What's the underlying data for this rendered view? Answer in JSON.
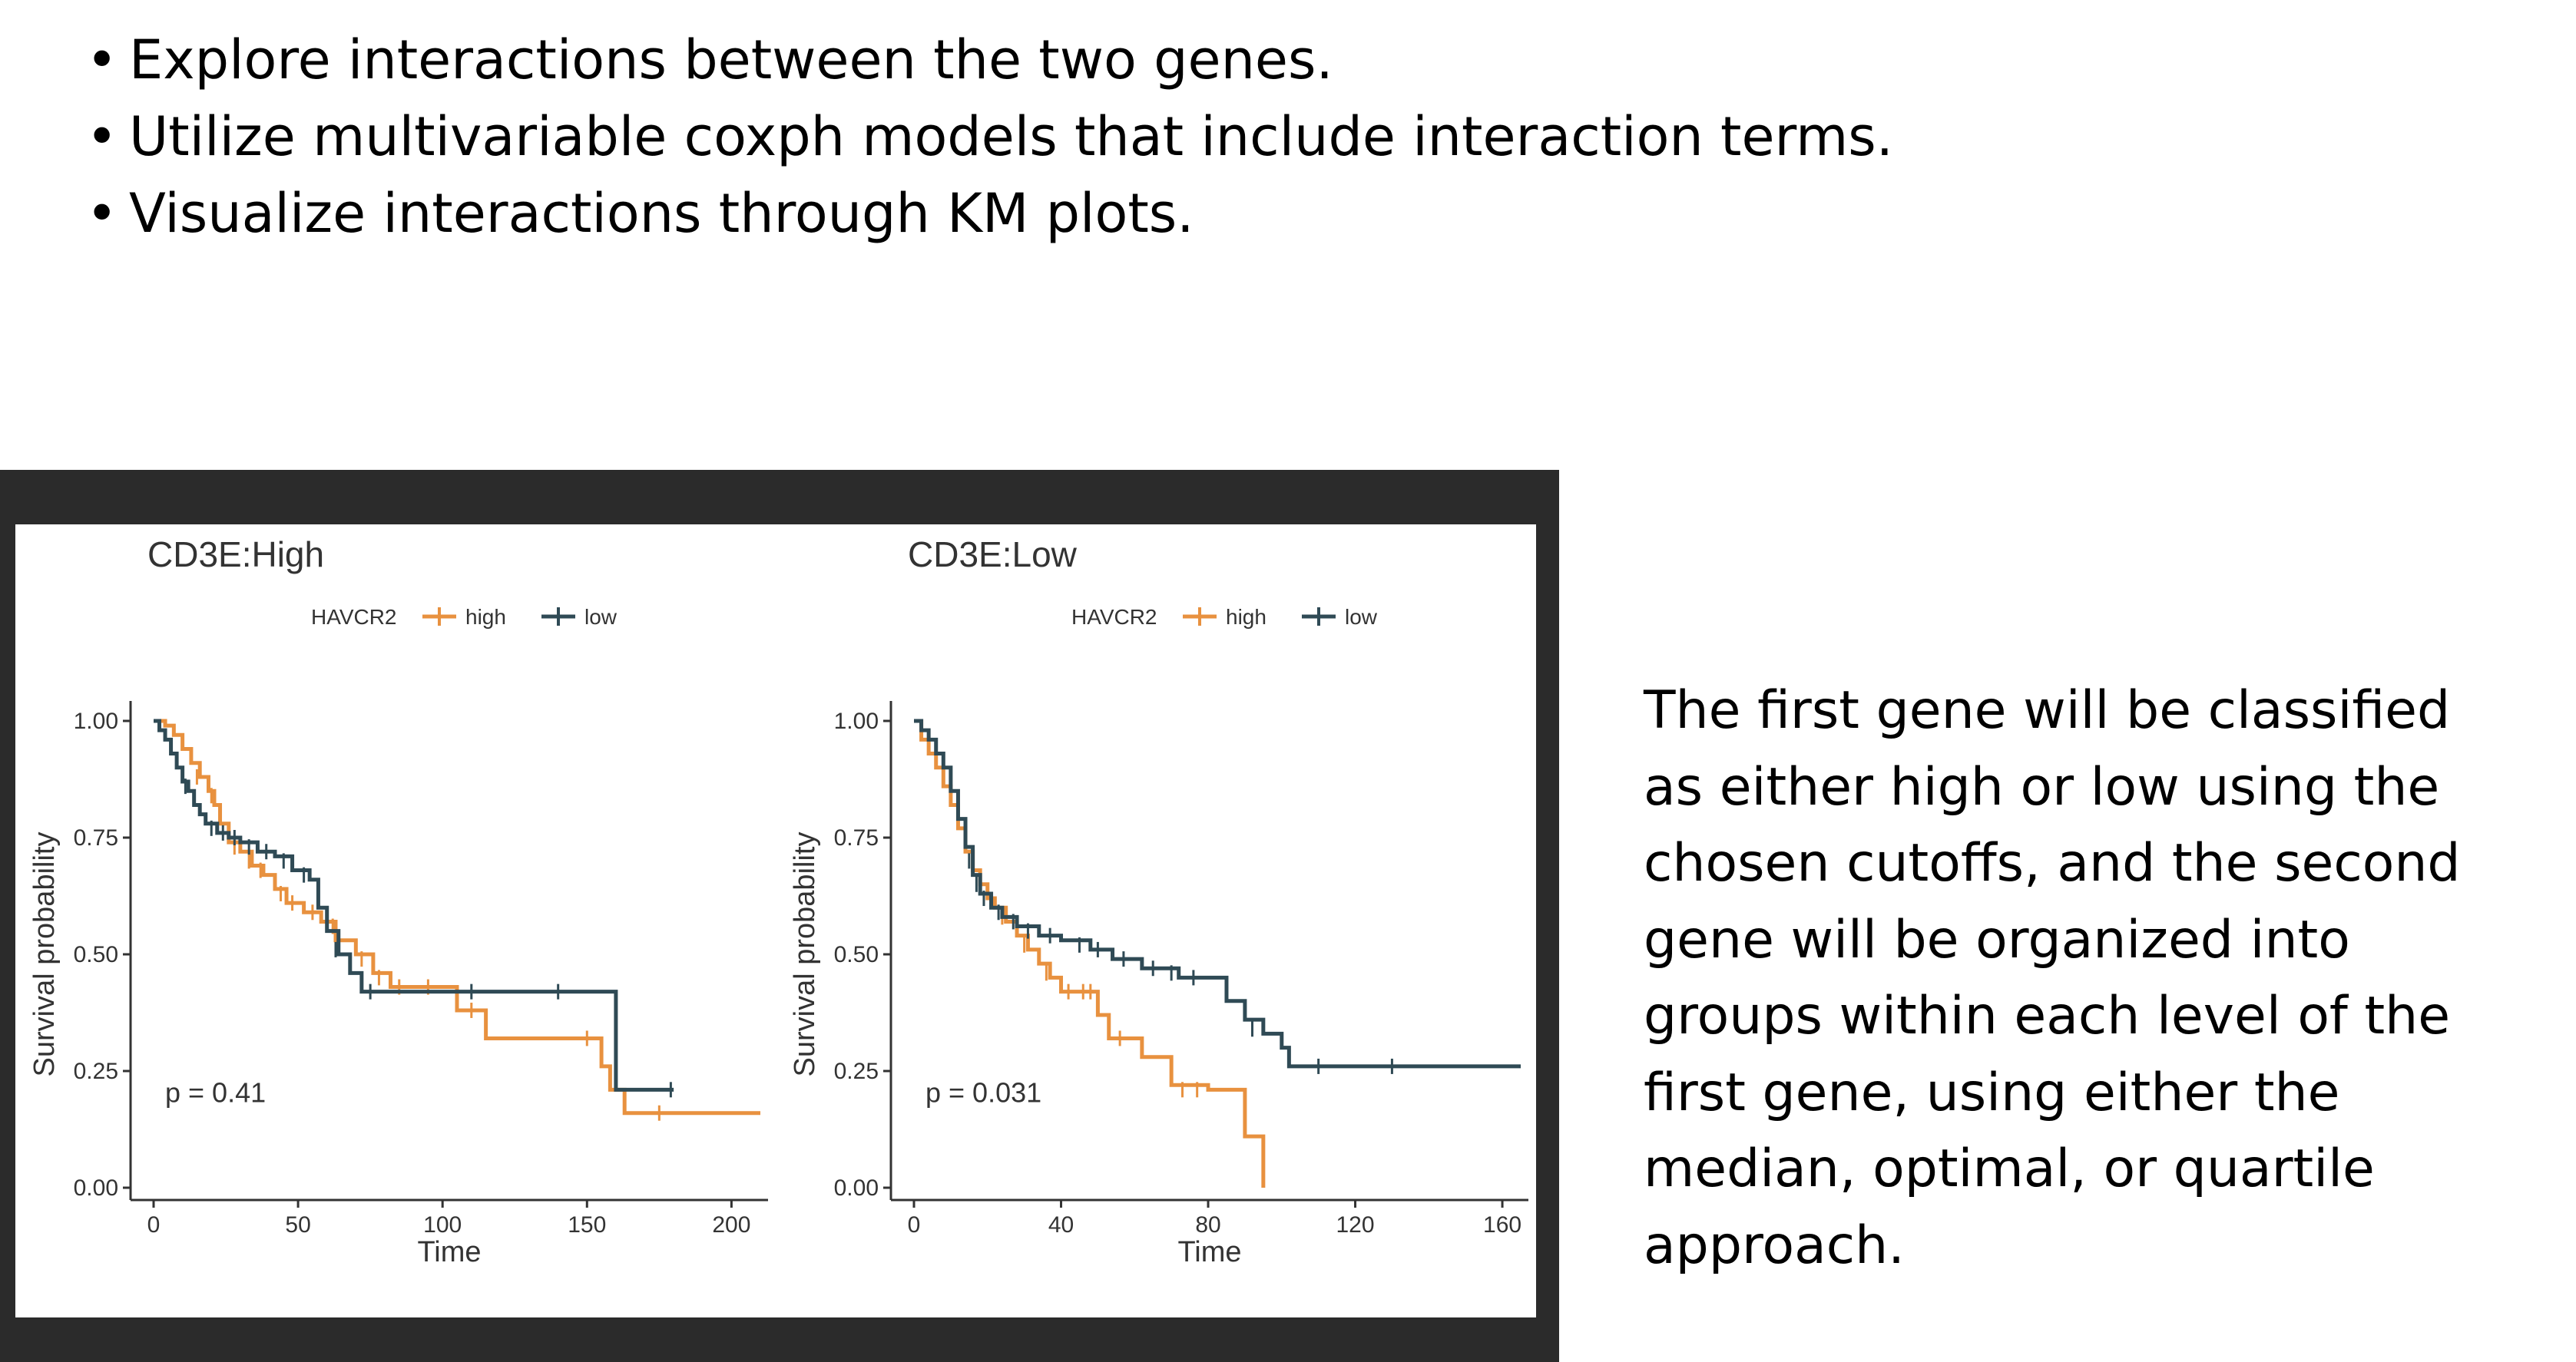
{
  "bullets": [
    "Explore interactions between the two genes.",
    "Utilize multivariable coxph models that include interaction terms.",
    "Visualize interactions through KM plots."
  ],
  "description_lines": [
    "The first gene will be classified",
    "as either high or low using the",
    "chosen cutoffs, and the second",
    "gene will be organized into",
    "groups within each level of the",
    "first gene, using either the",
    "median, optimal, or quartile",
    "approach."
  ],
  "colors": {
    "high": "#e8913f",
    "low": "#2f4a55",
    "frame": "#2b2b2b"
  },
  "chart_data": [
    {
      "type": "line",
      "title": "CD3E:High",
      "legend_title": "HAVCR2",
      "legend_position": "top",
      "xlabel": "Time",
      "ylabel": "Survival probability",
      "xlim": [
        0,
        210
      ],
      "ylim": [
        0,
        1
      ],
      "xticks": [
        0,
        50,
        100,
        150,
        200
      ],
      "yticks": [
        0,
        0.25,
        0.5,
        0.75,
        1.0
      ],
      "ytick_labels": [
        "0.00",
        "0.25",
        "0.50",
        "0.75",
        "1.00"
      ],
      "annotation": "p = 0.41",
      "series": [
        {
          "name": "high",
          "color": "#e8913f",
          "steps": [
            [
              0,
              1.0
            ],
            [
              4,
              0.99
            ],
            [
              7,
              0.97
            ],
            [
              10,
              0.94
            ],
            [
              13,
              0.91
            ],
            [
              16,
              0.88
            ],
            [
              19,
              0.85
            ],
            [
              21,
              0.82
            ],
            [
              23,
              0.78
            ],
            [
              26,
              0.74
            ],
            [
              30,
              0.72
            ],
            [
              34,
              0.69
            ],
            [
              38,
              0.67
            ],
            [
              42,
              0.64
            ],
            [
              46,
              0.61
            ],
            [
              52,
              0.59
            ],
            [
              58,
              0.57
            ],
            [
              63,
              0.53
            ],
            [
              70,
              0.5
            ],
            [
              76,
              0.46
            ],
            [
              82,
              0.43
            ],
            [
              105,
              0.38
            ],
            [
              115,
              0.32
            ],
            [
              155,
              0.26
            ],
            [
              158,
              0.21
            ],
            [
              163,
              0.16
            ],
            [
              210,
              0.16
            ]
          ],
          "censors": [
            [
              15,
              0.88
            ],
            [
              20,
              0.84
            ],
            [
              28,
              0.73
            ],
            [
              33,
              0.7
            ],
            [
              37,
              0.68
            ],
            [
              44,
              0.63
            ],
            [
              48,
              0.61
            ],
            [
              55,
              0.59
            ],
            [
              62,
              0.56
            ],
            [
              72,
              0.49
            ],
            [
              78,
              0.45
            ],
            [
              85,
              0.43
            ],
            [
              95,
              0.43
            ],
            [
              110,
              0.38
            ],
            [
              150,
              0.32
            ],
            [
              175,
              0.16
            ]
          ]
        },
        {
          "name": "low",
          "color": "#2f4a55",
          "steps": [
            [
              0,
              1.0
            ],
            [
              2,
              0.98
            ],
            [
              4,
              0.96
            ],
            [
              6,
              0.93
            ],
            [
              8,
              0.9
            ],
            [
              10,
              0.87
            ],
            [
              12,
              0.85
            ],
            [
              14,
              0.82
            ],
            [
              16,
              0.8
            ],
            [
              18,
              0.78
            ],
            [
              22,
              0.76
            ],
            [
              26,
              0.75
            ],
            [
              30,
              0.74
            ],
            [
              36,
              0.72
            ],
            [
              42,
              0.71
            ],
            [
              48,
              0.68
            ],
            [
              54,
              0.66
            ],
            [
              57,
              0.6
            ],
            [
              60,
              0.55
            ],
            [
              64,
              0.5
            ],
            [
              68,
              0.46
            ],
            [
              72,
              0.42
            ],
            [
              160,
              0.21
            ],
            [
              180,
              0.21
            ]
          ],
          "censors": [
            [
              11,
              0.86
            ],
            [
              20,
              0.77
            ],
            [
              24,
              0.76
            ],
            [
              28,
              0.75
            ],
            [
              33,
              0.73
            ],
            [
              39,
              0.72
            ],
            [
              45,
              0.7
            ],
            [
              52,
              0.67
            ],
            [
              63,
              0.51
            ],
            [
              75,
              0.42
            ],
            [
              110,
              0.42
            ],
            [
              140,
              0.42
            ],
            [
              179,
              0.21
            ]
          ]
        }
      ]
    },
    {
      "type": "line",
      "title": "CD3E:Low",
      "legend_title": "HAVCR2",
      "legend_position": "top",
      "xlabel": "Time",
      "ylabel": "Survival probability",
      "xlim": [
        0,
        165
      ],
      "ylim": [
        0,
        1
      ],
      "xticks": [
        0,
        40,
        80,
        120,
        160
      ],
      "yticks": [
        0,
        0.25,
        0.5,
        0.75,
        1.0
      ],
      "ytick_labels": [
        "0.00",
        "0.25",
        "0.50",
        "0.75",
        "1.00"
      ],
      "annotation": "p = 0.031",
      "series": [
        {
          "name": "high",
          "color": "#e8913f",
          "steps": [
            [
              0,
              1.0
            ],
            [
              2,
              0.96
            ],
            [
              4,
              0.93
            ],
            [
              6,
              0.9
            ],
            [
              8,
              0.86
            ],
            [
              10,
              0.82
            ],
            [
              12,
              0.77
            ],
            [
              14,
              0.72
            ],
            [
              16,
              0.68
            ],
            [
              18,
              0.65
            ],
            [
              20,
              0.62
            ],
            [
              22,
              0.6
            ],
            [
              25,
              0.57
            ],
            [
              28,
              0.54
            ],
            [
              31,
              0.51
            ],
            [
              34,
              0.48
            ],
            [
              37,
              0.45
            ],
            [
              40,
              0.42
            ],
            [
              50,
              0.37
            ],
            [
              53,
              0.32
            ],
            [
              62,
              0.28
            ],
            [
              70,
              0.22
            ],
            [
              80,
              0.21
            ],
            [
              90,
              0.11
            ],
            [
              95,
              0.0
            ]
          ],
          "censors": [
            [
              24,
              0.58
            ],
            [
              30,
              0.52
            ],
            [
              36,
              0.46
            ],
            [
              42,
              0.42
            ],
            [
              46,
              0.42
            ],
            [
              48,
              0.42
            ],
            [
              56,
              0.32
            ],
            [
              73,
              0.21
            ],
            [
              77,
              0.21
            ]
          ]
        },
        {
          "name": "low",
          "color": "#2f4a55",
          "steps": [
            [
              0,
              1.0
            ],
            [
              2,
              0.98
            ],
            [
              4,
              0.96
            ],
            [
              6,
              0.93
            ],
            [
              8,
              0.9
            ],
            [
              10,
              0.85
            ],
            [
              12,
              0.79
            ],
            [
              14,
              0.73
            ],
            [
              16,
              0.67
            ],
            [
              18,
              0.63
            ],
            [
              21,
              0.6
            ],
            [
              24,
              0.58
            ],
            [
              28,
              0.56
            ],
            [
              34,
              0.54
            ],
            [
              40,
              0.53
            ],
            [
              48,
              0.51
            ],
            [
              54,
              0.49
            ],
            [
              62,
              0.47
            ],
            [
              72,
              0.45
            ],
            [
              85,
              0.4
            ],
            [
              90,
              0.36
            ],
            [
              95,
              0.33
            ],
            [
              100,
              0.3
            ],
            [
              102,
              0.26
            ],
            [
              165,
              0.26
            ]
          ],
          "censors": [
            [
              15,
              0.7
            ],
            [
              17,
              0.65
            ],
            [
              19,
              0.62
            ],
            [
              23,
              0.59
            ],
            [
              27,
              0.57
            ],
            [
              31,
              0.55
            ],
            [
              37,
              0.54
            ],
            [
              45,
              0.52
            ],
            [
              50,
              0.51
            ],
            [
              57,
              0.49
            ],
            [
              65,
              0.47
            ],
            [
              70,
              0.46
            ],
            [
              76,
              0.45
            ],
            [
              92,
              0.34
            ],
            [
              110,
              0.26
            ],
            [
              130,
              0.26
            ]
          ]
        }
      ]
    }
  ]
}
